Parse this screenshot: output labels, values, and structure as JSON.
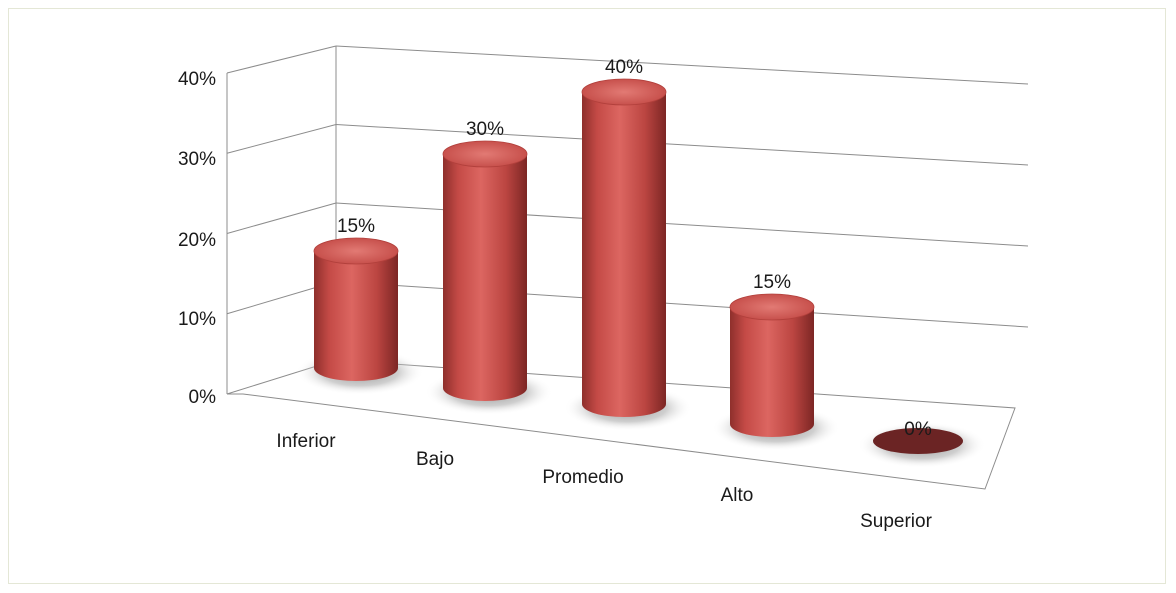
{
  "chart_data": {
    "type": "bar",
    "style": "3d-cylinder",
    "categories": [
      "Inferior",
      "Bajo",
      "Promedio",
      "Alto",
      "Superior"
    ],
    "values": [
      15,
      30,
      40,
      15,
      0
    ],
    "value_labels": [
      "15%",
      "30%",
      "40%",
      "15%",
      "0%"
    ],
    "ytick_labels": [
      "0%",
      "10%",
      "20%",
      "30%",
      "40%"
    ],
    "ylim": [
      0,
      40
    ],
    "title": "",
    "xlabel": "",
    "ylabel": "",
    "grid": true,
    "legend": "none",
    "bar_color": "#c8504c",
    "zero_bar_color": "#6b2424"
  }
}
